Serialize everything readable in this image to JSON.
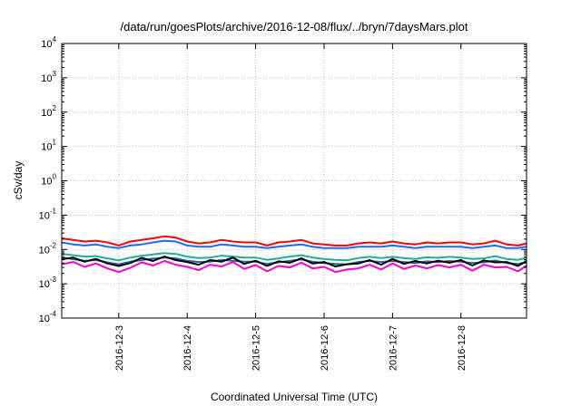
{
  "chart_data": {
    "type": "line",
    "title": "/data/run/goesPlots/archive/2016-12-08/flux/../bryn/7daysMars.plot",
    "xlabel": "Coordinated Universal Time (UTC)",
    "ylabel": "cSv/day",
    "yscale": "log",
    "ylim": [
      0.0001,
      10000
    ],
    "y_ticks": [
      {
        "base": "10",
        "exp": "-4",
        "value": 0.0001
      },
      {
        "base": "10",
        "exp": "-3",
        "value": 0.001
      },
      {
        "base": "10",
        "exp": "-2",
        "value": 0.01
      },
      {
        "base": "10",
        "exp": "-1",
        "value": 0.1
      },
      {
        "base": "10",
        "exp": "0",
        "value": 1
      },
      {
        "base": "10",
        "exp": "1",
        "value": 10
      },
      {
        "base": "10",
        "exp": "2",
        "value": 100
      },
      {
        "base": "10",
        "exp": "3",
        "value": 1000
      },
      {
        "base": "10",
        "exp": "4",
        "value": 10000
      }
    ],
    "xlim": [
      "2016-12-02 04:00",
      "2016-12-08 23:00"
    ],
    "x_ticks": [
      {
        "label": "2016-12-3",
        "date": "2016-12-03"
      },
      {
        "label": "2016-12-4",
        "date": "2016-12-04"
      },
      {
        "label": "2016-12-5",
        "date": "2016-12-05"
      },
      {
        "label": "2016-12-6",
        "date": "2016-12-06"
      },
      {
        "label": "2016-12-7",
        "date": "2016-12-07"
      },
      {
        "label": "2016-12-8",
        "date": "2016-12-08"
      }
    ],
    "grid": true,
    "legend": "none",
    "x": [
      "2016-12-02 04:00",
      "2016-12-02 08:00",
      "2016-12-02 12:00",
      "2016-12-02 16:00",
      "2016-12-02 20:00",
      "2016-12-03 00:00",
      "2016-12-03 04:00",
      "2016-12-03 08:00",
      "2016-12-03 12:00",
      "2016-12-03 16:00",
      "2016-12-03 20:00",
      "2016-12-04 00:00",
      "2016-12-04 04:00",
      "2016-12-04 08:00",
      "2016-12-04 12:00",
      "2016-12-04 16:00",
      "2016-12-04 20:00",
      "2016-12-05 00:00",
      "2016-12-05 04:00",
      "2016-12-05 08:00",
      "2016-12-05 12:00",
      "2016-12-05 16:00",
      "2016-12-05 20:00",
      "2016-12-06 00:00",
      "2016-12-06 04:00",
      "2016-12-06 08:00",
      "2016-12-06 12:00",
      "2016-12-06 16:00",
      "2016-12-06 20:00",
      "2016-12-07 00:00",
      "2016-12-07 04:00",
      "2016-12-07 08:00",
      "2016-12-07 12:00",
      "2016-12-07 16:00",
      "2016-12-07 20:00",
      "2016-12-08 00:00",
      "2016-12-08 04:00",
      "2016-12-08 08:00",
      "2016-12-08 12:00",
      "2016-12-08 16:00",
      "2016-12-08 20:00",
      "2016-12-08 23:00"
    ],
    "series": [
      {
        "color": "#ff0000",
        "values": [
          0.021,
          0.019,
          0.017,
          0.018,
          0.016,
          0.013,
          0.017,
          0.019,
          0.021,
          0.024,
          0.022,
          0.017,
          0.015,
          0.016,
          0.019,
          0.017,
          0.016,
          0.016,
          0.013,
          0.016,
          0.017,
          0.019,
          0.015,
          0.014,
          0.013,
          0.013,
          0.015,
          0.016,
          0.015,
          0.017,
          0.015,
          0.014,
          0.016,
          0.015,
          0.016,
          0.016,
          0.014,
          0.015,
          0.018,
          0.014,
          0.013,
          0.015
        ]
      },
      {
        "color": "#1a6aff",
        "values": [
          0.016,
          0.014,
          0.013,
          0.014,
          0.012,
          0.011,
          0.013,
          0.014,
          0.016,
          0.018,
          0.017,
          0.013,
          0.012,
          0.012,
          0.014,
          0.013,
          0.012,
          0.012,
          0.011,
          0.012,
          0.013,
          0.014,
          0.012,
          0.011,
          0.011,
          0.011,
          0.012,
          0.012,
          0.012,
          0.013,
          0.012,
          0.011,
          0.012,
          0.012,
          0.012,
          0.012,
          0.011,
          0.012,
          0.013,
          0.011,
          0.011,
          0.012
        ]
      },
      {
        "color": "#20b090",
        "values": [
          0.0075,
          0.0068,
          0.0062,
          0.0064,
          0.0055,
          0.0048,
          0.0058,
          0.0065,
          0.0072,
          0.0078,
          0.0074,
          0.0062,
          0.0056,
          0.0058,
          0.0066,
          0.0062,
          0.0058,
          0.0058,
          0.005,
          0.0055,
          0.0062,
          0.0068,
          0.0058,
          0.0053,
          0.005,
          0.0048,
          0.0056,
          0.0061,
          0.0056,
          0.0061,
          0.0056,
          0.0053,
          0.0059,
          0.0057,
          0.0061,
          0.0058,
          0.0053,
          0.0055,
          0.0064,
          0.0053,
          0.005,
          0.0057
        ]
      },
      {
        "color": "#3060b0",
        "values": [
          0.0058,
          0.0052,
          0.0047,
          0.0049,
          0.0042,
          0.0037,
          0.0044,
          0.0049,
          0.0054,
          0.0058,
          0.0055,
          0.0047,
          0.0043,
          0.0044,
          0.005,
          0.0047,
          0.0044,
          0.0044,
          0.0038,
          0.0042,
          0.0047,
          0.0051,
          0.0044,
          0.004,
          0.0038,
          0.0037,
          0.0043,
          0.0046,
          0.0043,
          0.0046,
          0.0043,
          0.004,
          0.0045,
          0.0043,
          0.0046,
          0.0044,
          0.004,
          0.0042,
          0.0048,
          0.004,
          0.0038,
          0.0043
        ]
      },
      {
        "color": "#000000",
        "values": [
          0.0052,
          0.0058,
          0.0044,
          0.0053,
          0.0039,
          0.0033,
          0.004,
          0.0057,
          0.0046,
          0.0062,
          0.0049,
          0.0043,
          0.0036,
          0.0049,
          0.0044,
          0.0058,
          0.0038,
          0.0047,
          0.0033,
          0.0045,
          0.0041,
          0.0055,
          0.0039,
          0.0043,
          0.0032,
          0.0037,
          0.0039,
          0.0049,
          0.0036,
          0.0053,
          0.0038,
          0.0046,
          0.0039,
          0.0047,
          0.0041,
          0.0049,
          0.0034,
          0.0048,
          0.0042,
          0.0043,
          0.0033,
          0.0046
        ]
      },
      {
        "color": "#ff00cc",
        "values": [
          0.0037,
          0.0043,
          0.0031,
          0.0039,
          0.0028,
          0.0022,
          0.0029,
          0.0042,
          0.0034,
          0.0046,
          0.0036,
          0.0031,
          0.0025,
          0.0036,
          0.0032,
          0.0043,
          0.0027,
          0.0035,
          0.0023,
          0.0033,
          0.003,
          0.0041,
          0.0028,
          0.0031,
          0.0022,
          0.0026,
          0.0028,
          0.0036,
          0.0026,
          0.0039,
          0.0027,
          0.0034,
          0.0028,
          0.0035,
          0.003,
          0.0036,
          0.0024,
          0.0036,
          0.003,
          0.0031,
          0.0023,
          0.0034
        ]
      }
    ]
  }
}
